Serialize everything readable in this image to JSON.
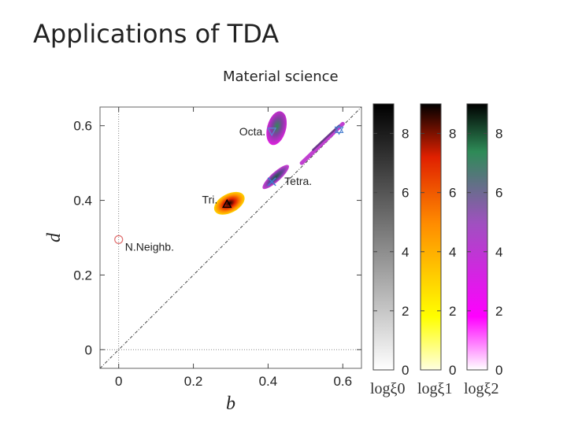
{
  "slide": {
    "title": "Applications of TDA",
    "subtitle": "Material science"
  },
  "chart_data": {
    "type": "scatter",
    "title": "",
    "xlabel": "b",
    "ylabel": "d",
    "xlim": [
      -0.05,
      0.65
    ],
    "ylim": [
      -0.05,
      0.65
    ],
    "x_ticks": [
      "0",
      "0.2",
      "0.4",
      "0.6"
    ],
    "y_ticks": [
      "0",
      "0.2",
      "0.4",
      "0.6"
    ],
    "diagonal": true,
    "guide_lines": [
      "x=0",
      "y=0"
    ],
    "series": [
      {
        "name": "logξ0",
        "colormap": [
          "#ffffff",
          "#000000"
        ]
      },
      {
        "name": "logξ1",
        "colormap": [
          "#ffffd0",
          "#ffff00",
          "#ff8c00",
          "#e02000",
          "#000000"
        ]
      },
      {
        "name": "logξ2",
        "colormap": [
          "#ffffff",
          "#ff00ff",
          "#a050c0",
          "#2e8b57",
          "#000000"
        ]
      }
    ],
    "clusters": [
      {
        "label": "N.Neighb.",
        "marker": "circle",
        "marker_color": "#e07070",
        "center": [
          0.0,
          0.295
        ]
      },
      {
        "label": "Tri.",
        "marker": "triangle-up",
        "marker_color": "#000000",
        "center": [
          0.29,
          0.39
        ],
        "colormap": "logξ1"
      },
      {
        "label": "Tetra.",
        "marker": "cross",
        "marker_color": "#3a7fd0",
        "center": [
          0.41,
          0.45
        ],
        "colormap": "logξ2"
      },
      {
        "label": "Octa.",
        "marker": "triangle-down",
        "marker_color": "#6080d0",
        "center": [
          0.41,
          0.585
        ],
        "colormap": "logξ2"
      },
      {
        "label": "",
        "marker": "star",
        "marker_color": "#4a80d0",
        "center": [
          0.59,
          0.59
        ],
        "colormap": "logξ2"
      }
    ],
    "colorbars": [
      {
        "label": "logξ0",
        "range": [
          0,
          9
        ],
        "ticks": [
          "0",
          "2",
          "4",
          "6",
          "8"
        ]
      },
      {
        "label": "logξ1",
        "range": [
          0,
          9
        ],
        "ticks": [
          "0",
          "2",
          "4",
          "6",
          "8"
        ]
      },
      {
        "label": "logξ2",
        "range": [
          0,
          9
        ],
        "ticks": [
          "0",
          "2",
          "4",
          "6",
          "8"
        ]
      }
    ]
  }
}
